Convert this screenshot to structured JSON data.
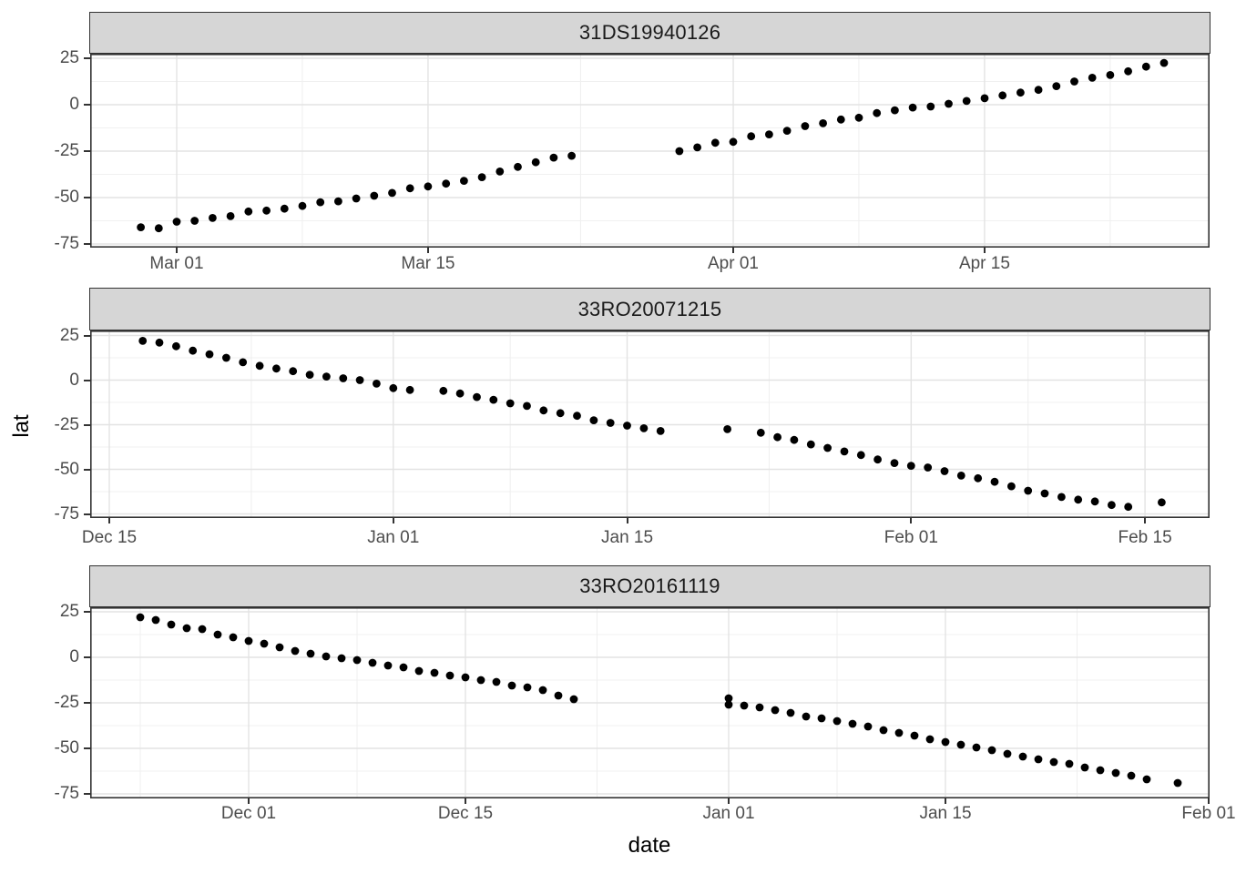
{
  "figure_title": "Faceted scatter plot of latitude over date for three cruise IDs",
  "chart_data": {
    "type": "scatter",
    "xlabel": "date",
    "ylabel": "lat",
    "legend": "none",
    "grid": "major and minor, light gray on white",
    "point_color": "#000000",
    "strip_bg_color": "#d6d6d6",
    "panel_border_color": "#333333",
    "tick_label_color": "#4d4d4d",
    "y_axis_ticks": [
      25,
      0,
      -25,
      -50,
      -75
    ],
    "y_minor_ticks": [
      12.5,
      -12.5,
      -37.5,
      -62.5
    ],
    "point_format": "[date_label, day_offset_from_first_major_tick, lat]",
    "facets": [
      {
        "title": "31DS19940126",
        "x_ticks": [
          {
            "label": "Mar 01",
            "day": 0
          },
          {
            "label": "Mar 15",
            "day": 14
          },
          {
            "label": "Apr 01",
            "day": 31
          },
          {
            "label": "Apr 15",
            "day": 45
          }
        ],
        "x_minor_days": [
          7,
          22.5,
          38,
          52
        ],
        "x_range_days": [
          -4.8,
          57.6
        ],
        "y_range": [
          -77,
          27.5
        ],
        "points": [
          [
            "Feb 27",
            -2,
            -66
          ],
          [
            "Feb 28",
            -1,
            -66.5
          ],
          [
            "Mar 01",
            0,
            -63
          ],
          [
            "Mar 02",
            1,
            -62.5
          ],
          [
            "Mar 03",
            2,
            -61
          ],
          [
            "Mar 04",
            3,
            -60
          ],
          [
            "Mar 05",
            4,
            -57.5
          ],
          [
            "Mar 06",
            5,
            -57
          ],
          [
            "Mar 07",
            6,
            -56
          ],
          [
            "Mar 08",
            7,
            -54.5
          ],
          [
            "Mar 09",
            8,
            -52.5
          ],
          [
            "Mar 10",
            9,
            -52
          ],
          [
            "Mar 11",
            10,
            -50.5
          ],
          [
            "Mar 12",
            11,
            -49
          ],
          [
            "Mar 13",
            12,
            -47.5
          ],
          [
            "Mar 14",
            13,
            -45
          ],
          [
            "Mar 15",
            14,
            -44
          ],
          [
            "Mar 16",
            15,
            -42.5
          ],
          [
            "Mar 17",
            16,
            -41
          ],
          [
            "Mar 18",
            17,
            -39
          ],
          [
            "Mar 19",
            18,
            -36
          ],
          [
            "Mar 20",
            19,
            -33.5
          ],
          [
            "Mar 21",
            20,
            -31
          ],
          [
            "Mar 22",
            21,
            -28.5
          ],
          [
            "Mar 23",
            22,
            -27.5
          ],
          [
            "Mar 29",
            28,
            -25
          ],
          [
            "Mar 30",
            29,
            -23
          ],
          [
            "Mar 31",
            30,
            -20.5
          ],
          [
            "Apr 01",
            31,
            -20
          ],
          [
            "Apr 02",
            32,
            -17
          ],
          [
            "Apr 03",
            33,
            -16
          ],
          [
            "Apr 04",
            34,
            -14
          ],
          [
            "Apr 05",
            35,
            -11.5
          ],
          [
            "Apr 06",
            36,
            -10
          ],
          [
            "Apr 07",
            37,
            -8
          ],
          [
            "Apr 08",
            38,
            -7
          ],
          [
            "Apr 09",
            39,
            -4.5
          ],
          [
            "Apr 10",
            40,
            -3
          ],
          [
            "Apr 11",
            41,
            -1.5
          ],
          [
            "Apr 12",
            42,
            -1
          ],
          [
            "Apr 13",
            43,
            0.5
          ],
          [
            "Apr 14",
            44,
            2
          ],
          [
            "Apr 15",
            45,
            3.5
          ],
          [
            "Apr 16",
            46,
            5
          ],
          [
            "Apr 17",
            47,
            6.5
          ],
          [
            "Apr 18",
            48,
            8
          ],
          [
            "Apr 19",
            49,
            10
          ],
          [
            "Apr 20",
            50,
            12.5
          ],
          [
            "Apr 21",
            51,
            14.5
          ],
          [
            "Apr 22",
            52,
            16
          ],
          [
            "Apr 23",
            53,
            18
          ],
          [
            "Apr 24",
            54,
            20.5
          ],
          [
            "Apr 25",
            55,
            22.5
          ]
        ]
      },
      {
        "title": "33RO20071215",
        "x_ticks": [
          {
            "label": "Dec 15",
            "day": 0
          },
          {
            "label": "Jan 01",
            "day": 17
          },
          {
            "label": "Jan 15",
            "day": 31
          },
          {
            "label": "Feb 01",
            "day": 48
          },
          {
            "label": "Feb 15",
            "day": 62
          }
        ],
        "x_minor_days": [
          8.5,
          24,
          39.5,
          55
        ],
        "x_range_days": [
          -1.1,
          65.9
        ],
        "y_range": [
          -77.3,
          27.8
        ],
        "points": [
          [
            "Dec 17",
            2,
            22
          ],
          [
            "Dec 18",
            3,
            21
          ],
          [
            "Dec 19",
            4,
            19
          ],
          [
            "Dec 20",
            5,
            16.5
          ],
          [
            "Dec 21",
            6,
            14.5
          ],
          [
            "Dec 22",
            7,
            12.5
          ],
          [
            "Dec 23",
            8,
            10
          ],
          [
            "Dec 24",
            9,
            8
          ],
          [
            "Dec 25",
            10,
            6.5
          ],
          [
            "Dec 26",
            11,
            5
          ],
          [
            "Dec 27",
            12,
            3
          ],
          [
            "Dec 28",
            13,
            2
          ],
          [
            "Dec 29",
            14,
            1
          ],
          [
            "Dec 30",
            15,
            0
          ],
          [
            "Dec 31",
            16,
            -2
          ],
          [
            "Jan 01",
            17,
            -4.5
          ],
          [
            "Jan 02",
            18,
            -5.5
          ],
          [
            "Jan 04",
            20,
            -6
          ],
          [
            "Jan 05",
            21,
            -7.5
          ],
          [
            "Jan 06",
            22,
            -9.5
          ],
          [
            "Jan 07",
            23,
            -11
          ],
          [
            "Jan 08",
            24,
            -13
          ],
          [
            "Jan 09",
            25,
            -14.5
          ],
          [
            "Jan 10",
            26,
            -17
          ],
          [
            "Jan 11",
            27,
            -18.5
          ],
          [
            "Jan 12",
            28,
            -20
          ],
          [
            "Jan 13",
            29,
            -22.5
          ],
          [
            "Jan 14",
            30,
            -24
          ],
          [
            "Jan 15",
            31,
            -25.5
          ],
          [
            "Jan 16",
            32,
            -27
          ],
          [
            "Jan 17",
            33,
            -28.5
          ],
          [
            "Jan 21",
            37,
            -27.5
          ],
          [
            "Jan 23",
            39,
            -29.5
          ],
          [
            "Jan 24",
            40,
            -32
          ],
          [
            "Jan 25",
            41,
            -33.5
          ],
          [
            "Jan 26",
            42,
            -36
          ],
          [
            "Jan 27",
            43,
            -38
          ],
          [
            "Jan 28",
            44,
            -40
          ],
          [
            "Jan 29",
            45,
            -42
          ],
          [
            "Jan 30",
            46,
            -44.5
          ],
          [
            "Jan 31",
            47,
            -46.5
          ],
          [
            "Feb 01",
            48,
            -48
          ],
          [
            "Feb 02",
            49,
            -49
          ],
          [
            "Feb 03",
            50,
            -51
          ],
          [
            "Feb 04",
            51,
            -53.5
          ],
          [
            "Feb 05",
            52,
            -55
          ],
          [
            "Feb 06",
            53,
            -57
          ],
          [
            "Feb 07",
            54,
            -59.5
          ],
          [
            "Feb 08",
            55,
            -62
          ],
          [
            "Feb 09",
            56,
            -63.5
          ],
          [
            "Feb 10",
            57,
            -65.5
          ],
          [
            "Feb 11",
            58,
            -67
          ],
          [
            "Feb 12",
            59,
            -68
          ],
          [
            "Feb 13",
            60,
            -70
          ],
          [
            "Feb 14",
            61,
            -71
          ],
          [
            "Feb 16",
            63,
            -68.5
          ]
        ]
      },
      {
        "title": "33RO20161119",
        "x_ticks": [
          {
            "label": "Dec 01",
            "day": 0
          },
          {
            "label": "Dec 15",
            "day": 14
          },
          {
            "label": "Jan 01",
            "day": 31
          },
          {
            "label": "Jan 15",
            "day": 45
          },
          {
            "label": "Feb 01",
            "day": 62
          }
        ],
        "x_minor_days": [
          -7,
          7,
          22.5,
          38,
          53.5
        ],
        "x_range_days": [
          -10.2,
          62.1
        ],
        "y_range": [
          -77.5,
          27.5
        ],
        "points": [
          [
            "Nov 24",
            -7,
            22
          ],
          [
            "Nov 25",
            -6,
            20.5
          ],
          [
            "Nov 26",
            -5,
            18
          ],
          [
            "Nov 27",
            -4,
            16
          ],
          [
            "Nov 28",
            -3,
            15.5
          ],
          [
            "Nov 29",
            -2,
            12.5
          ],
          [
            "Nov 30",
            -1,
            11
          ],
          [
            "Dec 01",
            0,
            9
          ],
          [
            "Dec 02",
            1,
            7.5
          ],
          [
            "Dec 03",
            2,
            5.5
          ],
          [
            "Dec 04",
            3,
            3.5
          ],
          [
            "Dec 05",
            4,
            2
          ],
          [
            "Dec 06",
            5,
            0.5
          ],
          [
            "Dec 07",
            6,
            -0.5
          ],
          [
            "Dec 08",
            7,
            -1.5
          ],
          [
            "Dec 09",
            8,
            -3
          ],
          [
            "Dec 10",
            9,
            -4.5
          ],
          [
            "Dec 11",
            10,
            -5.5
          ],
          [
            "Dec 12",
            11,
            -7.5
          ],
          [
            "Dec 13",
            12,
            -8.5
          ],
          [
            "Dec 14",
            13,
            -10
          ],
          [
            "Dec 15",
            14,
            -11
          ],
          [
            "Dec 16",
            15,
            -12.5
          ],
          [
            "Dec 17",
            16,
            -13.5
          ],
          [
            "Dec 18",
            17,
            -15.5
          ],
          [
            "Dec 19",
            18,
            -16.5
          ],
          [
            "Dec 20",
            19,
            -18
          ],
          [
            "Dec 21",
            20,
            -21
          ],
          [
            "Dec 22",
            21,
            -23
          ],
          [
            "Jan 01",
            31,
            -22.5
          ],
          [
            "Jan 01",
            31,
            -26
          ],
          [
            "Jan 02",
            32,
            -26.5
          ],
          [
            "Jan 03",
            33,
            -27.5
          ],
          [
            "Jan 04",
            34,
            -29
          ],
          [
            "Jan 05",
            35,
            -30.5
          ],
          [
            "Jan 06",
            36,
            -32.5
          ],
          [
            "Jan 07",
            37,
            -33.5
          ],
          [
            "Jan 08",
            38,
            -35
          ],
          [
            "Jan 09",
            39,
            -36.5
          ],
          [
            "Jan 10",
            40,
            -38
          ],
          [
            "Jan 11",
            41,
            -40
          ],
          [
            "Jan 12",
            42,
            -41.5
          ],
          [
            "Jan 13",
            43,
            -43
          ],
          [
            "Jan 14",
            44,
            -45
          ],
          [
            "Jan 15",
            45,
            -46.5
          ],
          [
            "Jan 16",
            46,
            -48
          ],
          [
            "Jan 17",
            47,
            -49.5
          ],
          [
            "Jan 18",
            48,
            -51
          ],
          [
            "Jan 19",
            49,
            -53
          ],
          [
            "Jan 20",
            50,
            -54.5
          ],
          [
            "Jan 21",
            51,
            -56
          ],
          [
            "Jan 22",
            52,
            -57.5
          ],
          [
            "Jan 23",
            53,
            -58.5
          ],
          [
            "Jan 24",
            54,
            -60.5
          ],
          [
            "Jan 25",
            55,
            -62
          ],
          [
            "Jan 26",
            56,
            -63.5
          ],
          [
            "Jan 27",
            57,
            -65
          ],
          [
            "Jan 28",
            58,
            -67
          ],
          [
            "Jan 30",
            60,
            -69
          ]
        ]
      }
    ]
  }
}
